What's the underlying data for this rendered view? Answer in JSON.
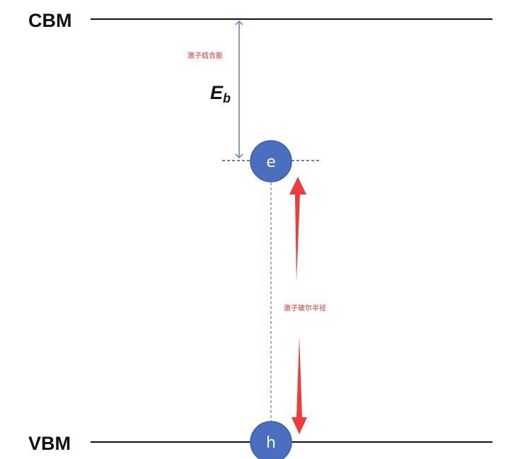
{
  "bands": {
    "cbm": "CBM",
    "vbm": "VBM"
  },
  "binding_energy": {
    "symbol": "E",
    "subscript": "b",
    "caption": "激子结合能"
  },
  "bohr_radius": {
    "caption": "激子玻尔半径"
  },
  "particles": {
    "electron": "e",
    "hole": "h"
  },
  "colors": {
    "band_line": "#111111",
    "particle_fill": "#4a6fbf",
    "particle_stroke": "#3d5ea8",
    "arrow_blue": "#5a7fc4",
    "arrow_red": "#ef3b3b",
    "caption_red": "#e03030"
  }
}
